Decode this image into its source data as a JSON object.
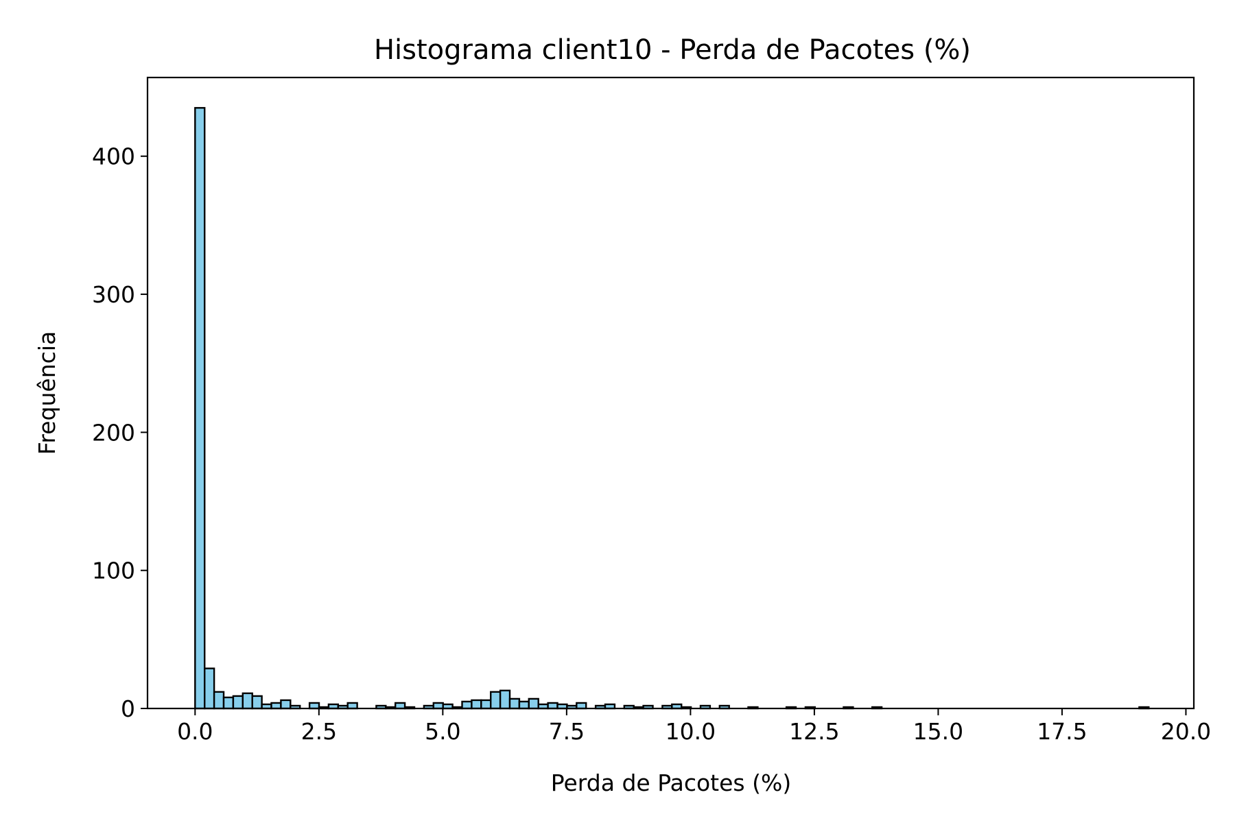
{
  "chart_data": {
    "type": "bar",
    "title": "Histograma client10 - Perda de Pacotes (%)",
    "xlabel": "Perda de Pacotes (%)",
    "ylabel": "Frequência",
    "xlim": [
      -0.96,
      20.16
    ],
    "ylim": [
      0,
      457
    ],
    "x_ticks": [
      0.0,
      2.5,
      5.0,
      7.5,
      10.0,
      12.5,
      15.0,
      17.5,
      20.0
    ],
    "x_tick_labels": [
      "0.0",
      "2.5",
      "5.0",
      "7.5",
      "10.0",
      "12.5",
      "15.0",
      "17.5",
      "20.0"
    ],
    "y_ticks": [
      0,
      100,
      200,
      300,
      400
    ],
    "y_tick_labels": [
      "0",
      "100",
      "200",
      "300",
      "400"
    ],
    "bin_width": 0.1925,
    "bin_start": 0.0,
    "values": [
      435,
      29,
      12,
      8,
      9,
      11,
      9,
      3,
      4,
      6,
      2,
      0,
      4,
      1,
      3,
      2,
      4,
      0,
      0,
      2,
      1,
      4,
      1,
      0,
      2,
      4,
      3,
      1,
      5,
      6,
      6,
      12,
      13,
      7,
      5,
      7,
      3,
      4,
      3,
      2,
      4,
      0,
      2,
      3,
      0,
      2,
      1,
      2,
      0,
      2,
      3,
      1,
      0,
      2,
      0,
      2,
      0,
      0,
      1,
      0,
      0,
      0,
      1,
      0,
      1,
      0,
      0,
      0,
      1,
      0,
      0,
      1,
      0,
      0,
      0,
      0,
      0,
      0,
      0,
      0,
      0,
      0,
      0,
      0,
      0,
      0,
      0,
      0,
      0,
      0,
      0,
      0,
      0,
      0,
      0,
      0,
      0,
      0,
      0,
      1
    ],
    "bar_color": "#87ceeb",
    "edge_color": "#000000",
    "grid": false,
    "legend": "none"
  }
}
